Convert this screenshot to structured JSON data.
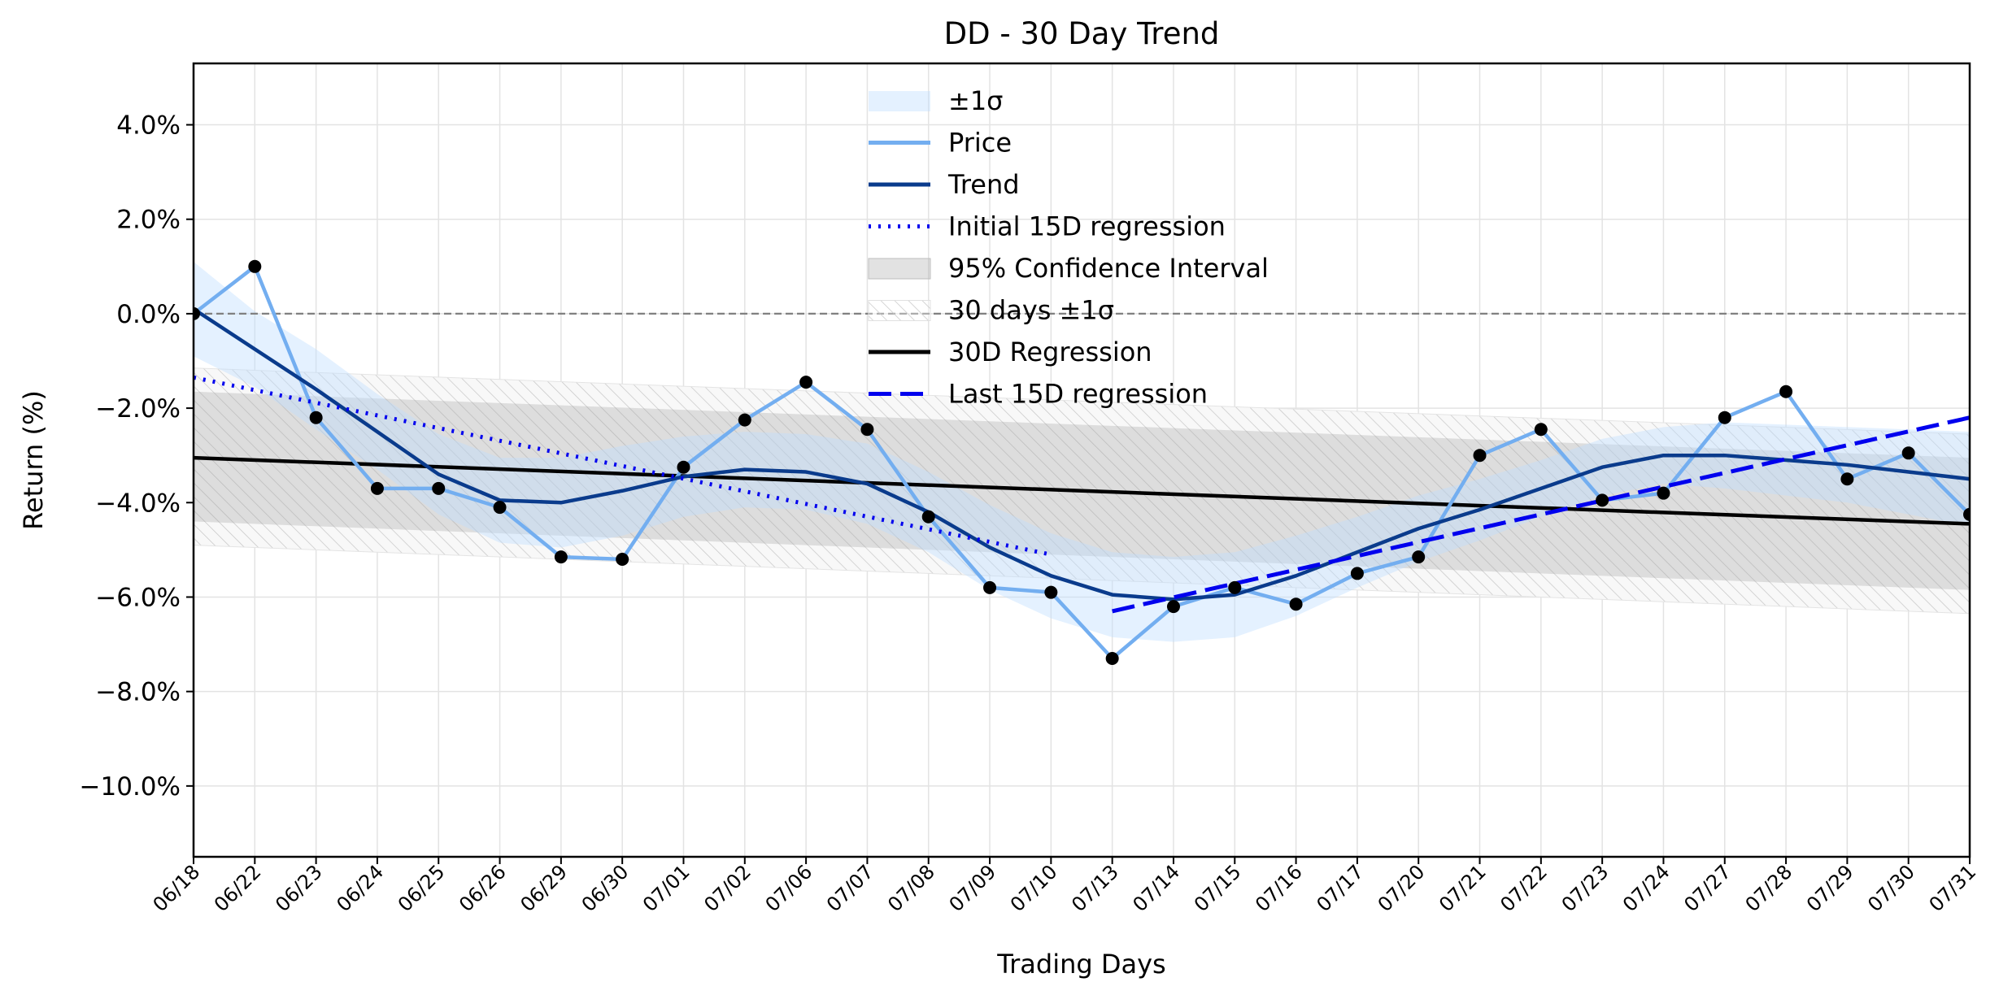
{
  "chart_data": {
    "type": "line",
    "title": "DD - 30 Day Trend",
    "xlabel": "Trading Days",
    "ylabel": "Return (%)",
    "x": [
      "06/18",
      "06/22",
      "06/23",
      "06/24",
      "06/25",
      "06/26",
      "06/29",
      "06/30",
      "07/01",
      "07/02",
      "07/06",
      "07/07",
      "07/08",
      "07/09",
      "07/10",
      "07/13",
      "07/14",
      "07/15",
      "07/16",
      "07/17",
      "07/20",
      "07/21",
      "07/22",
      "07/23",
      "07/24",
      "07/27",
      "07/28",
      "07/29",
      "07/30",
      "07/31"
    ],
    "ylim": [
      -11.5,
      5.3
    ],
    "yticks": [
      4,
      2,
      0,
      -2,
      -4,
      -6,
      -8,
      -10
    ],
    "ytick_labels": [
      "4.0%",
      "2.0%",
      "0.0%",
      "−2.0%",
      "−4.0%",
      "−6.0%",
      "−8.0%",
      "−10.0%"
    ],
    "grid": true,
    "legend_position": "top-center",
    "series": [
      {
        "name": "Price",
        "color": "#73aef0",
        "values": [
          0.0,
          1.0,
          -2.2,
          -3.7,
          -3.7,
          -4.1,
          -5.15,
          -5.2,
          -3.25,
          -2.25,
          -1.45,
          -2.45,
          -4.3,
          -5.8,
          -5.9,
          -7.3,
          -6.2,
          -5.8,
          -6.15,
          -5.5,
          -5.15,
          -3.0,
          -2.45,
          -3.95,
          -3.8,
          -2.2,
          -1.65,
          -3.5,
          -2.95,
          -4.25
        ],
        "markers": true,
        "marker_color": "#000000"
      },
      {
        "name": "Trend",
        "color": "#0a3b8c",
        "values": [
          0.1,
          -0.75,
          -1.6,
          -2.5,
          -3.4,
          -3.95,
          -4.0,
          -3.75,
          -3.45,
          -3.3,
          -3.35,
          -3.6,
          -4.2,
          -4.95,
          -5.55,
          -5.95,
          -6.05,
          -5.95,
          -5.55,
          -5.05,
          -4.55,
          -4.15,
          -3.7,
          -3.25,
          -3.0,
          -3.0,
          -3.1,
          -3.2,
          -3.35,
          -3.5
        ]
      },
      {
        "name": "±1σ",
        "type": "band",
        "color": "#ddeeff",
        "upper": [
          1.1,
          0.05,
          -0.75,
          -1.7,
          -2.55,
          -3.05,
          -3.05,
          -2.8,
          -2.6,
          -2.5,
          -2.55,
          -2.75,
          -3.35,
          -4.05,
          -4.65,
          -5.05,
          -5.15,
          -5.05,
          -4.7,
          -4.3,
          -3.85,
          -3.5,
          -3.1,
          -2.65,
          -2.4,
          -2.3,
          -2.35,
          -2.4,
          -2.45,
          -2.5
        ],
        "lower": [
          -0.9,
          -1.55,
          -2.45,
          -3.3,
          -4.25,
          -4.85,
          -4.95,
          -4.7,
          -4.3,
          -4.1,
          -4.15,
          -4.45,
          -5.05,
          -5.85,
          -6.45,
          -6.85,
          -6.95,
          -6.85,
          -6.4,
          -5.8,
          -5.25,
          -4.8,
          -4.3,
          -3.85,
          -3.6,
          -3.7,
          -3.85,
          -4.0,
          -4.25,
          -4.5
        ]
      },
      {
        "name": "Initial 15D regression",
        "color": "#0000ee",
        "style": "dotted",
        "x_range": [
          "06/18",
          "07/10"
        ],
        "y_start": -1.35,
        "y_end": -5.1
      },
      {
        "name": "95% Confidence Interval",
        "type": "band",
        "color": "#d9d9d9",
        "upper_start": -1.65,
        "upper_end": -3.05,
        "lower_start": -4.4,
        "lower_end": -5.85
      },
      {
        "name": "30 days ±1σ",
        "type": "band",
        "hatch": true,
        "color": "#e6e6e6",
        "upper_start": -1.15,
        "upper_end": -2.55,
        "lower_start": -4.9,
        "lower_end": -6.35
      },
      {
        "name": "30D Regression",
        "color": "#000000",
        "x_range": [
          "06/18",
          "07/31"
        ],
        "y_start": -3.05,
        "y_end": -4.45
      },
      {
        "name": "Last 15D regression",
        "color": "#0000ee",
        "style": "dashed",
        "x_range": [
          "07/13",
          "07/31"
        ],
        "y_start": -6.3,
        "y_end": -2.2
      }
    ],
    "reference_line": {
      "y": 0,
      "color": "#808080",
      "style": "dashed"
    }
  }
}
